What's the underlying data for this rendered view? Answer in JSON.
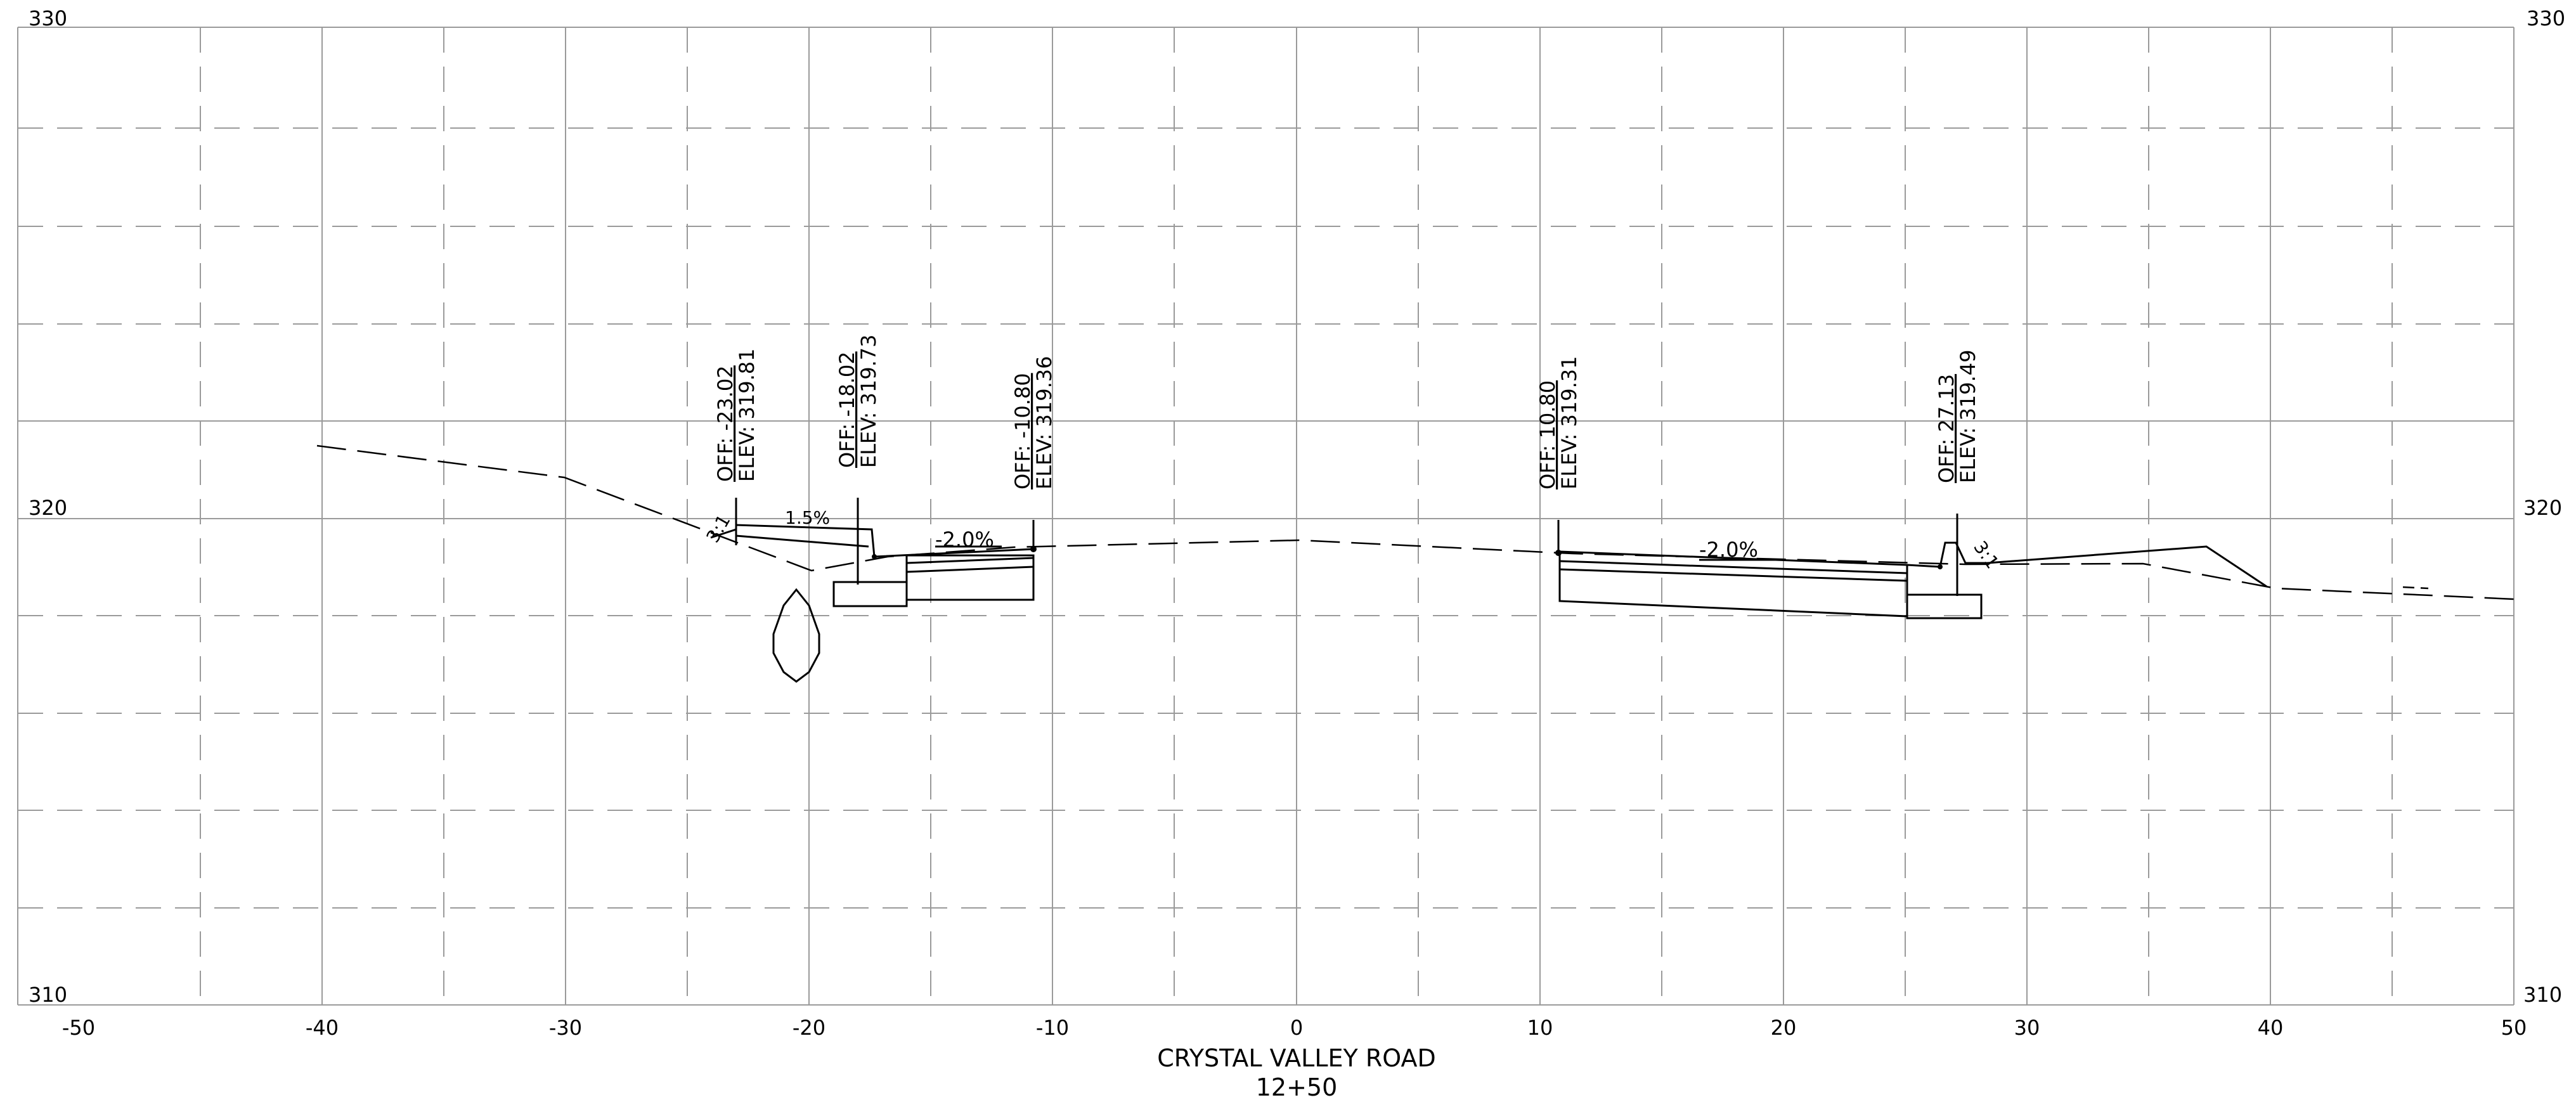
{
  "sheet": {
    "title": "CRYSTAL VALLEY ROAD",
    "station": "12+50"
  },
  "axes": {
    "x_ticks": [
      "-50",
      "-40",
      "-30",
      "-20",
      "-10",
      "0",
      "10",
      "20",
      "30",
      "40",
      "50"
    ],
    "y_labels_left": [
      "330",
      "320",
      "310"
    ],
    "y_labels_right": [
      "330",
      "320",
      "310"
    ]
  },
  "callouts": [
    {
      "off": "OFF: -23.02",
      "elev": "ELEV: 319.81"
    },
    {
      "off": "OFF: -18.02",
      "elev": "ELEV: 319.73"
    },
    {
      "off": "OFF: -10.80",
      "elev": "ELEV: 319.36"
    },
    {
      "off": "OFF: 10.80",
      "elev": "ELEV: 319.31"
    },
    {
      "off": "OFF: 27.13",
      "elev": "ELEV: 319.49"
    }
  ],
  "annotations": {
    "slope_left_sidewalk": "1.5%",
    "slope_left_lane": "-2.0%",
    "slope_right_lane": "-2.0%",
    "slope_left_side": "3:1",
    "slope_right_side": "3:1"
  },
  "colors": {
    "line": "#000000",
    "grid": "#9a9a9a",
    "background": "#ffffff"
  }
}
